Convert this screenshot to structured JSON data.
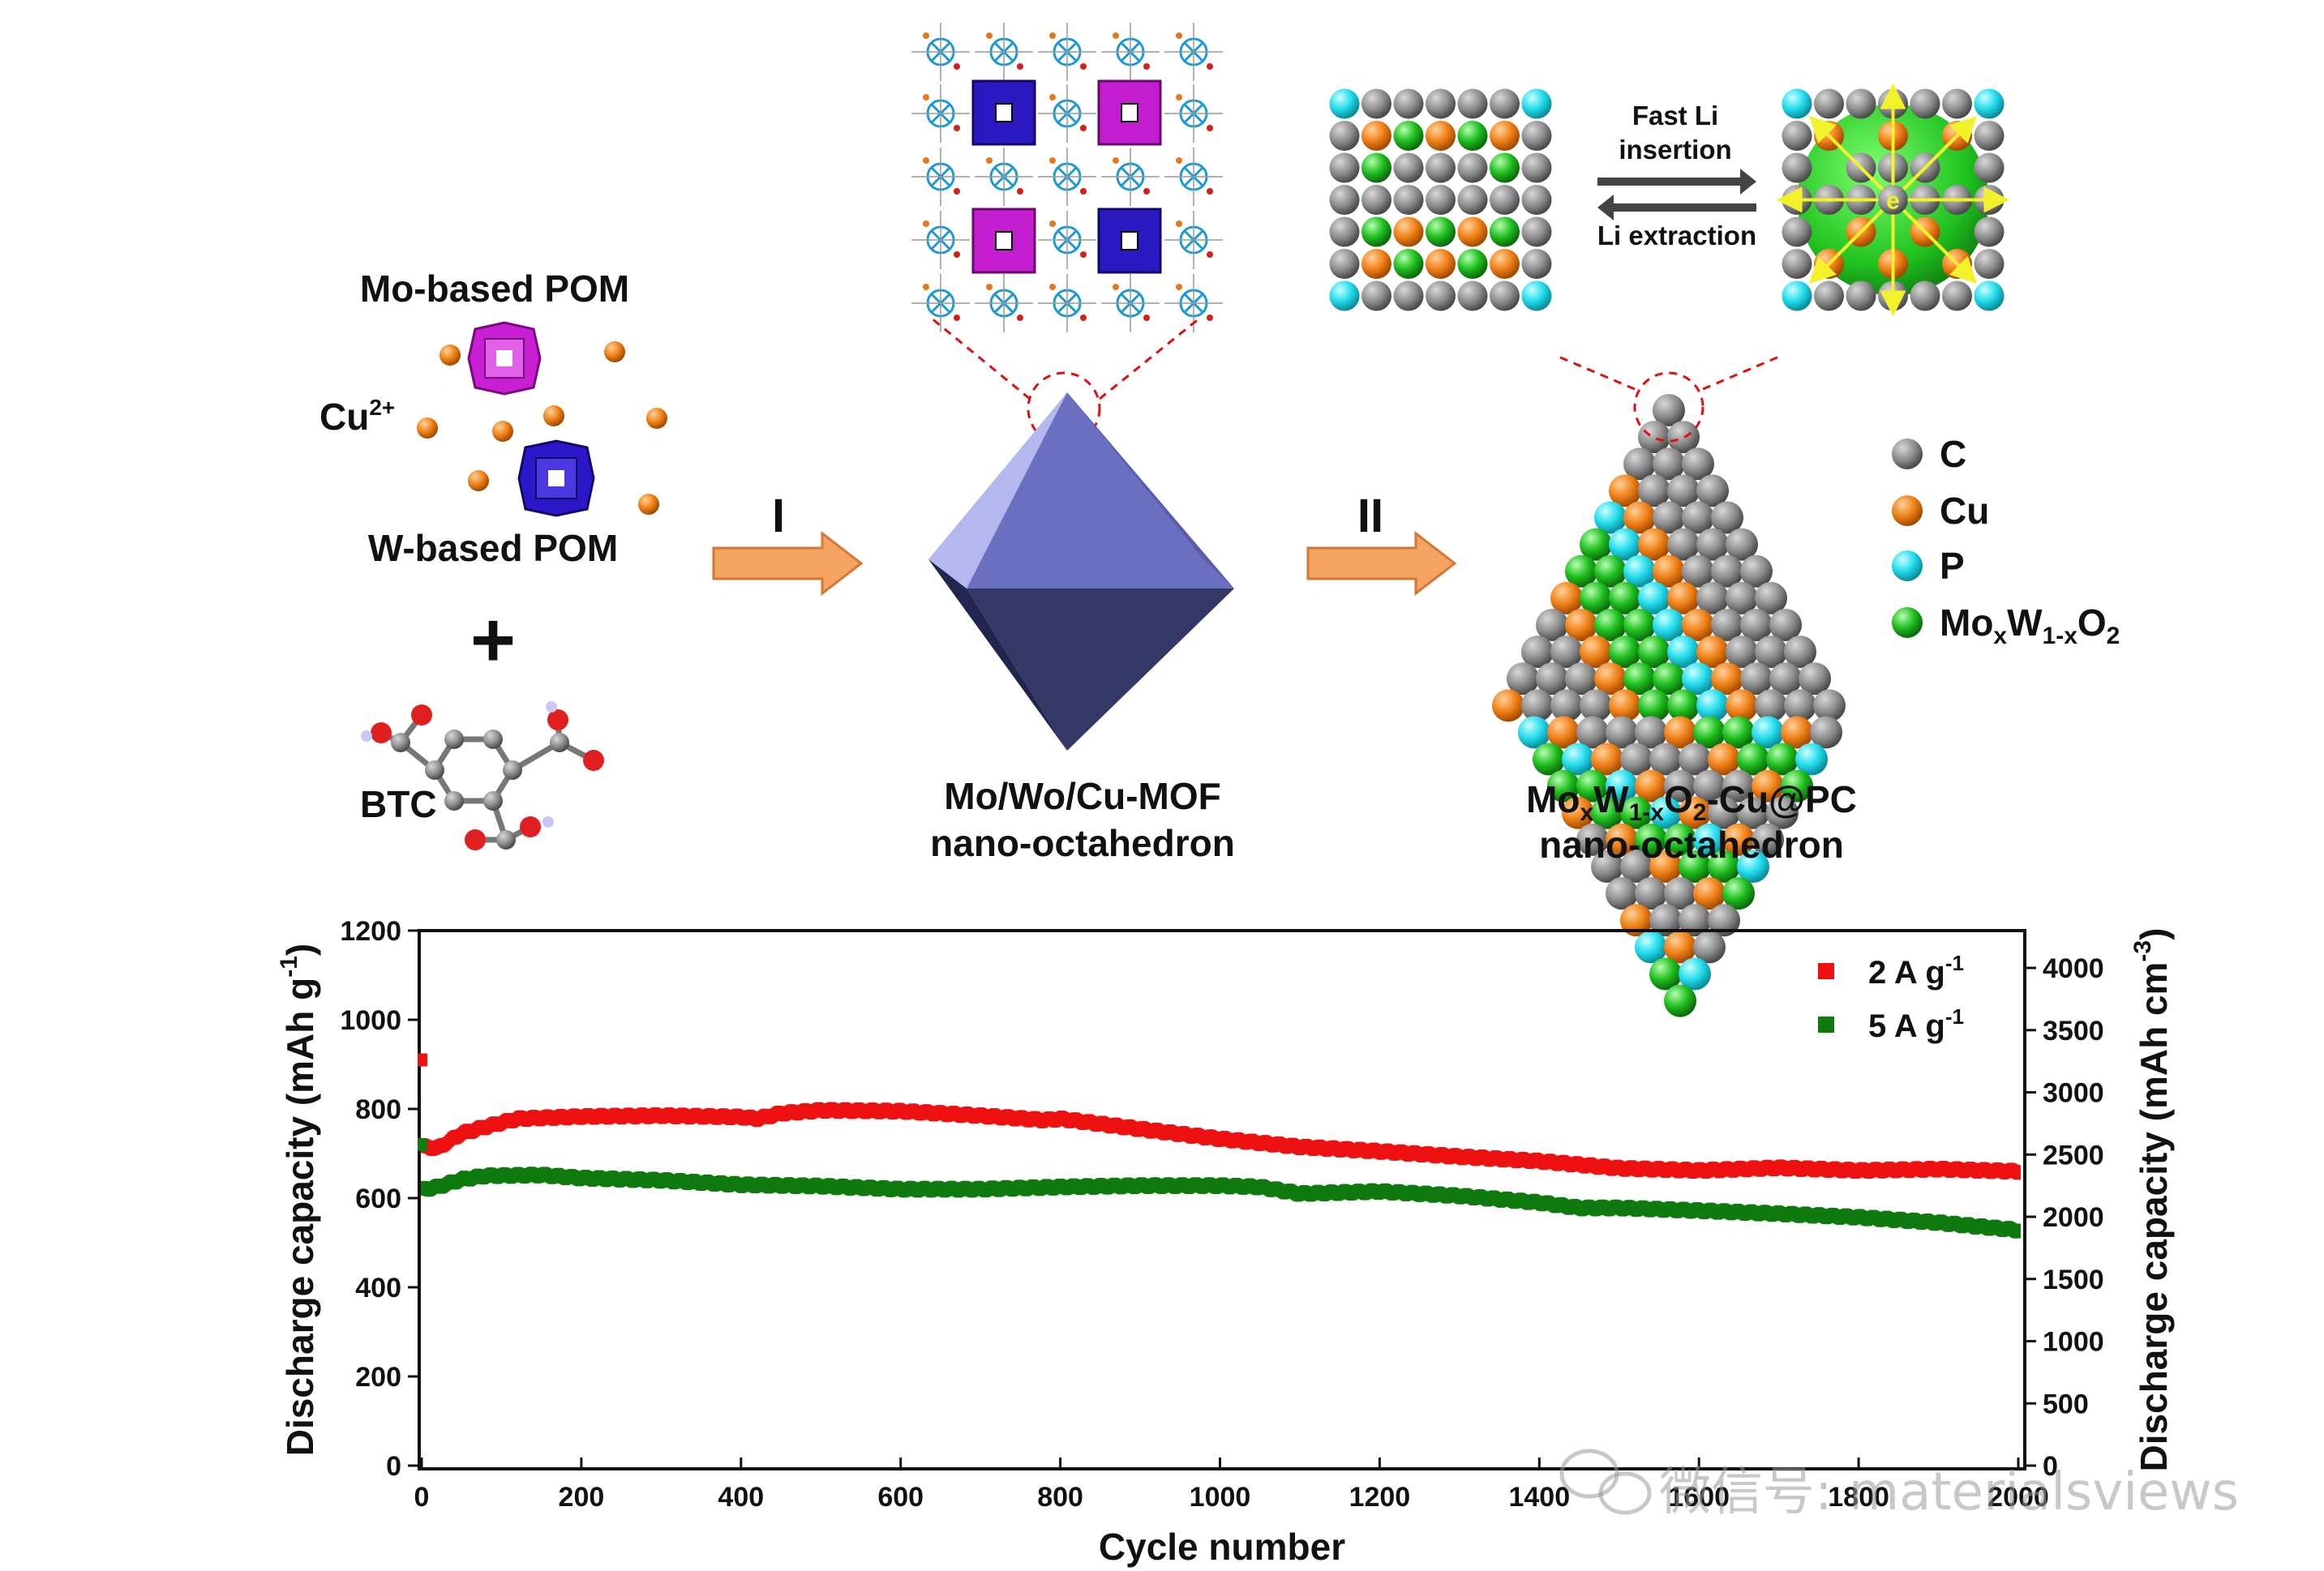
{
  "schematic": {
    "mo_pom_label": "Mo-based POM",
    "cu_label": "Cu",
    "cu_superscript": "2+",
    "w_pom_label": "W-based POM",
    "plus_sign": "+",
    "btc_label": "BTC",
    "step1_label": "I",
    "step2_label": "II",
    "mof_label_line1": "Mo/Wo/Cu-MOF",
    "mof_label_line2": "nano-octahedron",
    "product_label_line1": {
      "p1": "Mo",
      "s1": "x",
      "p2": "W",
      "s2": "1-x",
      "p3": "O",
      "s3": "2",
      "p4": "-Cu@PC"
    },
    "product_label_line2": "nano-octahedron",
    "fast_li_line1": "Fast Li",
    "fast_li_line2": "insertion",
    "li_extraction": "Li extraction",
    "electron_label": "e",
    "legend": [
      {
        "name": "C",
        "color": "#808080"
      },
      {
        "name": "Cu",
        "color": "#f07f1a"
      },
      {
        "name": "P",
        "color": "#22d8e8"
      },
      {
        "name": "MoxW1-xO2",
        "color": "#1fba1f",
        "rich": {
          "p1": "Mo",
          "s1": "x",
          "p2": "W",
          "s2": "1-x",
          "p3": "O",
          "s3": "2"
        }
      }
    ],
    "colors": {
      "arrow_orange": "#f4a460",
      "octa_face": "#6b6fc0",
      "octa_dark": "#2e3266",
      "mo_pom": "#c020c8",
      "w_pom": "#2a18c0",
      "red_dashed": "#d11",
      "yellow_arrow": "#f2f22a"
    }
  },
  "chart_data": {
    "type": "scatter",
    "xlabel": "Cycle number",
    "ylabel": "Discharge capacity (mAh g",
    "ylabel_sup": "-1",
    "y2label": "Discharge capacity (mAh cm",
    "y2label_sup": "-3",
    "xlim": [
      0,
      2000
    ],
    "ylim": [
      0,
      1200
    ],
    "y2lim": [
      0,
      4300
    ],
    "xticks": [
      0,
      200,
      400,
      600,
      800,
      1000,
      1200,
      1400,
      1600,
      1800,
      2000
    ],
    "yticks": [
      0,
      200,
      400,
      600,
      800,
      1000,
      1200
    ],
    "y2ticks": [
      0,
      500,
      1000,
      1500,
      2000,
      2500,
      3000,
      3500,
      4000
    ],
    "legend_position": "top-right",
    "series": [
      {
        "name": "2 A g",
        "name_sup": "-1",
        "color": "#ee1111",
        "first_point": [
          1,
          910
        ],
        "points": [
          [
            3,
            715
          ],
          [
            20,
            712
          ],
          [
            50,
            745
          ],
          [
            80,
            760
          ],
          [
            120,
            778
          ],
          [
            200,
            783
          ],
          [
            300,
            785
          ],
          [
            400,
            782
          ],
          [
            420,
            778
          ],
          [
            450,
            790
          ],
          [
            500,
            797
          ],
          [
            600,
            795
          ],
          [
            700,
            785
          ],
          [
            780,
            775
          ],
          [
            800,
            778
          ],
          [
            900,
            755
          ],
          [
            1000,
            733
          ],
          [
            1100,
            715
          ],
          [
            1200,
            705
          ],
          [
            1300,
            693
          ],
          [
            1400,
            683
          ],
          [
            1500,
            667
          ],
          [
            1600,
            662
          ],
          [
            1700,
            668
          ],
          [
            1800,
            662
          ],
          [
            1900,
            665
          ],
          [
            2000,
            660
          ]
        ]
      },
      {
        "name": "5 A g",
        "name_sup": "-1",
        "color": "#0f7a0f",
        "first_point": [
          1,
          720
        ],
        "points": [
          [
            3,
            620
          ],
          [
            20,
            625
          ],
          [
            50,
            642
          ],
          [
            80,
            650
          ],
          [
            150,
            652
          ],
          [
            200,
            645
          ],
          [
            300,
            640
          ],
          [
            400,
            630
          ],
          [
            500,
            627
          ],
          [
            600,
            620
          ],
          [
            700,
            620
          ],
          [
            800,
            625
          ],
          [
            900,
            628
          ],
          [
            1000,
            628
          ],
          [
            1050,
            625
          ],
          [
            1100,
            610
          ],
          [
            1200,
            615
          ],
          [
            1300,
            605
          ],
          [
            1400,
            590
          ],
          [
            1450,
            578
          ],
          [
            1500,
            578
          ],
          [
            1600,
            572
          ],
          [
            1700,
            565
          ],
          [
            1800,
            557
          ],
          [
            1900,
            545
          ],
          [
            2000,
            528
          ]
        ]
      }
    ]
  },
  "watermark": "微信号: materialsviews"
}
